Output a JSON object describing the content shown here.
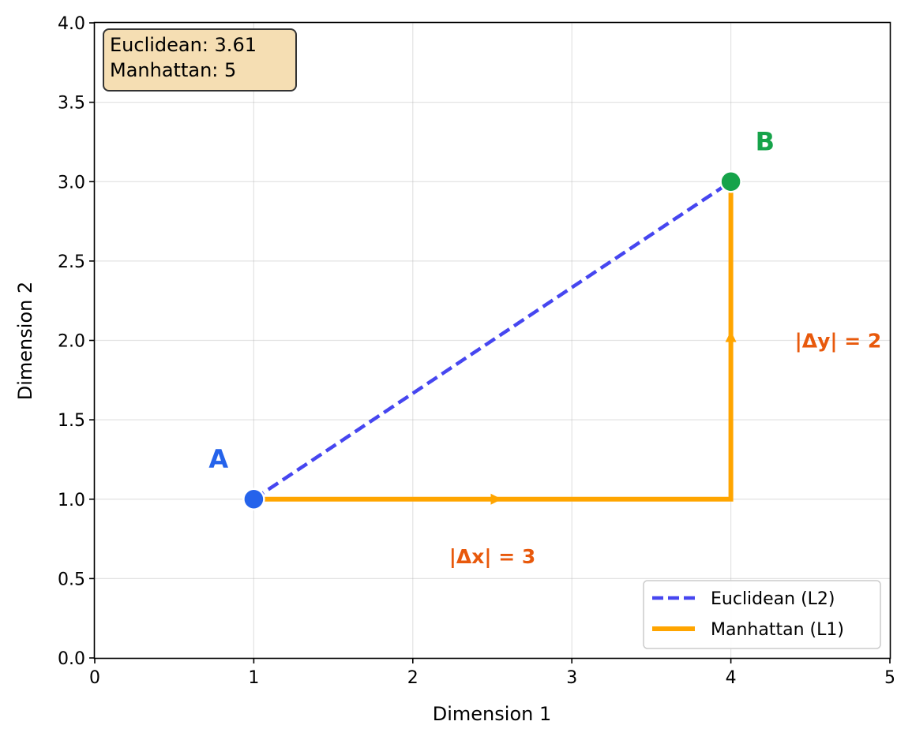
{
  "chart_data": {
    "type": "line",
    "xlabel": "Dimension 1",
    "ylabel": "Dimension 2",
    "xlim": [
      0,
      5
    ],
    "ylim": [
      0,
      4
    ],
    "x_ticks": [
      "0",
      "1",
      "2",
      "3",
      "4",
      "5"
    ],
    "y_ticks": [
      "0.0",
      "0.5",
      "1.0",
      "1.5",
      "2.0",
      "2.5",
      "3.0",
      "3.5",
      "4.0"
    ],
    "grid": true,
    "legend_position": "bottom-right",
    "points": [
      {
        "label": "A",
        "x": 1,
        "y": 1,
        "color": "#2563eb"
      },
      {
        "label": "B",
        "x": 4,
        "y": 3,
        "color": "#16a34a"
      }
    ],
    "series": [
      {
        "name": "Euclidean (L2)",
        "style": "dashed",
        "color": "#4646f0",
        "x": [
          1,
          4
        ],
        "y": [
          1,
          3
        ]
      },
      {
        "name": "Manhattan (L1)",
        "style": "solid",
        "color": "#ffa500",
        "x": [
          1,
          4,
          4
        ],
        "y": [
          1,
          1,
          3
        ]
      }
    ],
    "annotations": {
      "dx_label": "|Δx| = 3",
      "dy_label": "|Δy| = 2",
      "color": "#e8590c"
    },
    "info_box": {
      "line1": "Euclidean: 3.61",
      "line2": "Manhattan: 5",
      "background": "#f5deb3"
    }
  }
}
